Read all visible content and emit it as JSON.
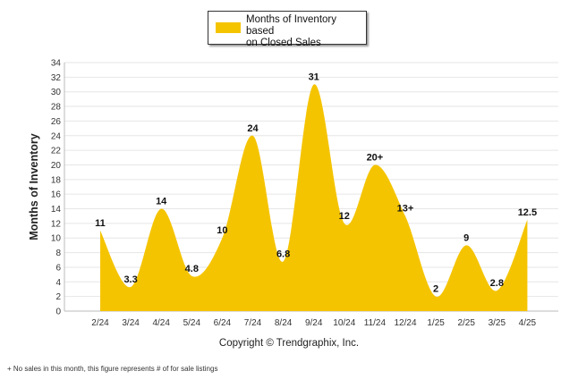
{
  "chart_data": {
    "type": "area",
    "categories": [
      "2/24",
      "3/24",
      "4/24",
      "5/24",
      "6/24",
      "7/24",
      "8/24",
      "9/24",
      "10/24",
      "11/24",
      "12/24",
      "1/25",
      "2/25",
      "3/25",
      "4/25"
    ],
    "series": [
      {
        "name": "Months of Inventory based on Closed Sales",
        "values": [
          11,
          3.3,
          14,
          4.8,
          10,
          24,
          6.8,
          31,
          12,
          20,
          13,
          2,
          9,
          2.8,
          12.5
        ],
        "labels": [
          "11",
          "3.3",
          "14",
          "4.8",
          "10",
          "24",
          "6.8",
          "31",
          "12",
          "20+",
          "13+",
          "2",
          "9",
          "2.8",
          "12.5"
        ]
      }
    ],
    "ylabel": "Months of Inventory",
    "xlabel": "",
    "title": "",
    "ylim": [
      0,
      34
    ],
    "yticks": [
      0,
      2,
      4,
      6,
      8,
      10,
      12,
      14,
      16,
      18,
      20,
      22,
      24,
      26,
      28,
      30,
      32,
      34
    ],
    "grid": true,
    "legend": "top-center",
    "color": "#f5c400"
  },
  "legend": {
    "label_line1": "Months of Inventory based",
    "label_line2": "on Closed Sales"
  },
  "copyright": "Copyright © Trendgraphix, Inc.",
  "footnote": "+ No sales in this month, this figure represents # of for sale listings"
}
